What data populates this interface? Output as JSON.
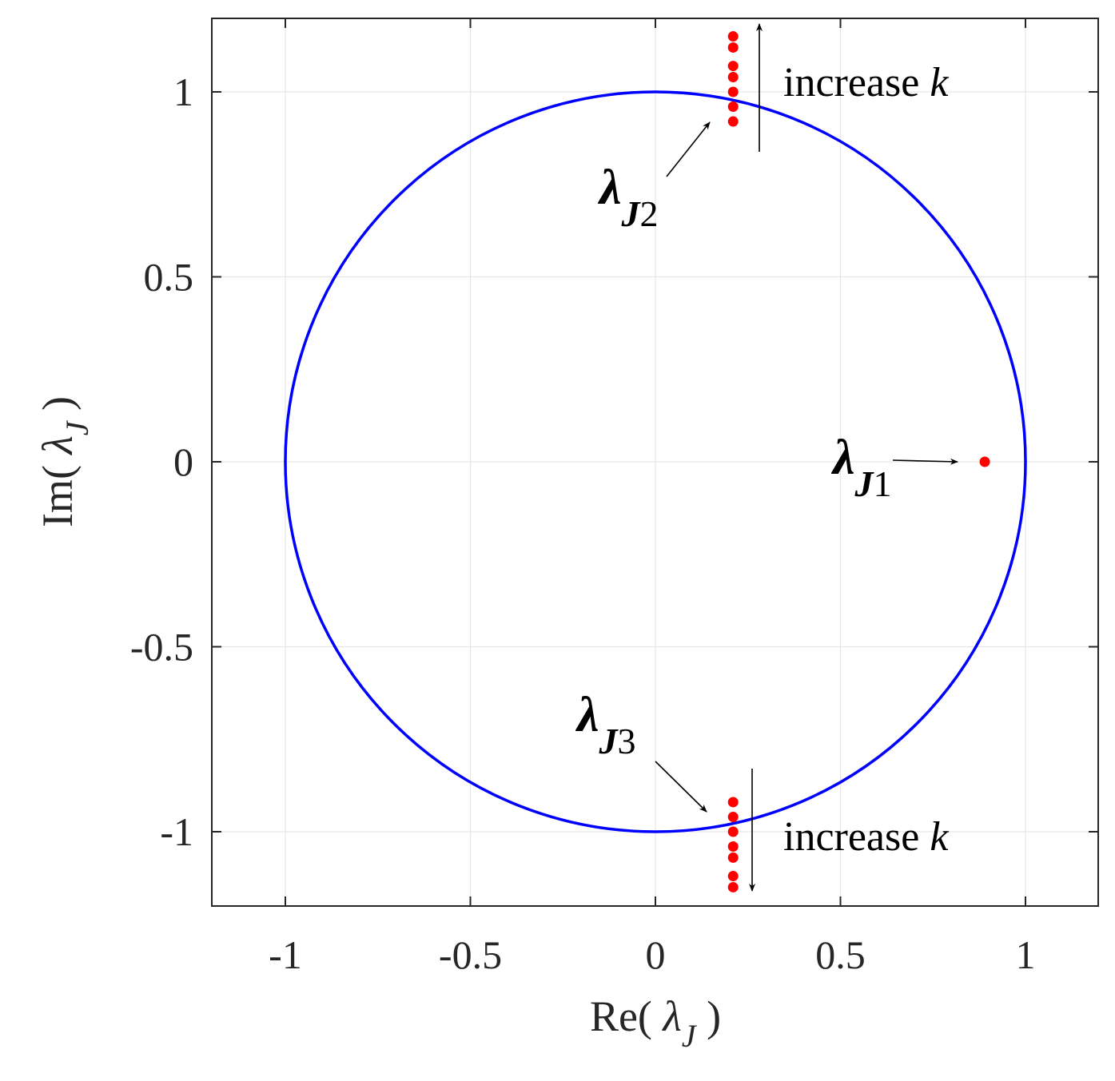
{
  "chart_data": {
    "type": "scatter",
    "xlabel": {
      "prefix": "Re( ",
      "symbol": "λ",
      "subscript": "J",
      "suffix": " )"
    },
    "ylabel": {
      "prefix": "Im( ",
      "symbol": "λ",
      "subscript": "J",
      "suffix": " )"
    },
    "xlim": [
      -1.2,
      1.2
    ],
    "ylim": [
      -1.2,
      1.2
    ],
    "grid": true,
    "x_ticks": [
      -1,
      -0.5,
      0,
      0.5,
      1
    ],
    "x_tick_labels": [
      "-1",
      "-0.5",
      "0",
      "0.5",
      "1"
    ],
    "y_ticks": [
      -1,
      -0.5,
      0,
      0.5,
      1
    ],
    "y_tick_labels": [
      "-1",
      "-0.5",
      "0",
      "0.5",
      "1"
    ],
    "unit_circle": {
      "radius": 1,
      "center": [
        0,
        0
      ],
      "color": "#0000ff"
    },
    "series": [
      {
        "name": "λJ1",
        "color": "#ff0000",
        "points": [
          [
            0.89,
            0.0
          ]
        ]
      },
      {
        "name": "λJ2",
        "color": "#ff0000",
        "points": [
          [
            0.21,
            0.92
          ],
          [
            0.21,
            0.96
          ],
          [
            0.21,
            1.0
          ],
          [
            0.21,
            1.04
          ],
          [
            0.21,
            1.07
          ],
          [
            0.21,
            1.12
          ],
          [
            0.21,
            1.15
          ]
        ]
      },
      {
        "name": "λJ3",
        "color": "#ff0000",
        "points": [
          [
            0.21,
            -0.92
          ],
          [
            0.21,
            -0.96
          ],
          [
            0.21,
            -1.0
          ],
          [
            0.21,
            -1.04
          ],
          [
            0.21,
            -1.07
          ],
          [
            0.21,
            -1.12
          ],
          [
            0.21,
            -1.15
          ]
        ]
      }
    ],
    "annotations": {
      "increase_top": {
        "text": "increase ",
        "italic": "k"
      },
      "increase_bottom": {
        "text": "increase ",
        "italic": "k"
      },
      "lambda_j1": {
        "symbol": "λ",
        "sub_italic": "J",
        "sub_num": "1"
      },
      "lambda_j2": {
        "symbol": "λ",
        "sub_italic": "J",
        "sub_num": "2"
      },
      "lambda_j3": {
        "symbol": "λ",
        "sub_italic": "J",
        "sub_num": "3"
      }
    }
  }
}
